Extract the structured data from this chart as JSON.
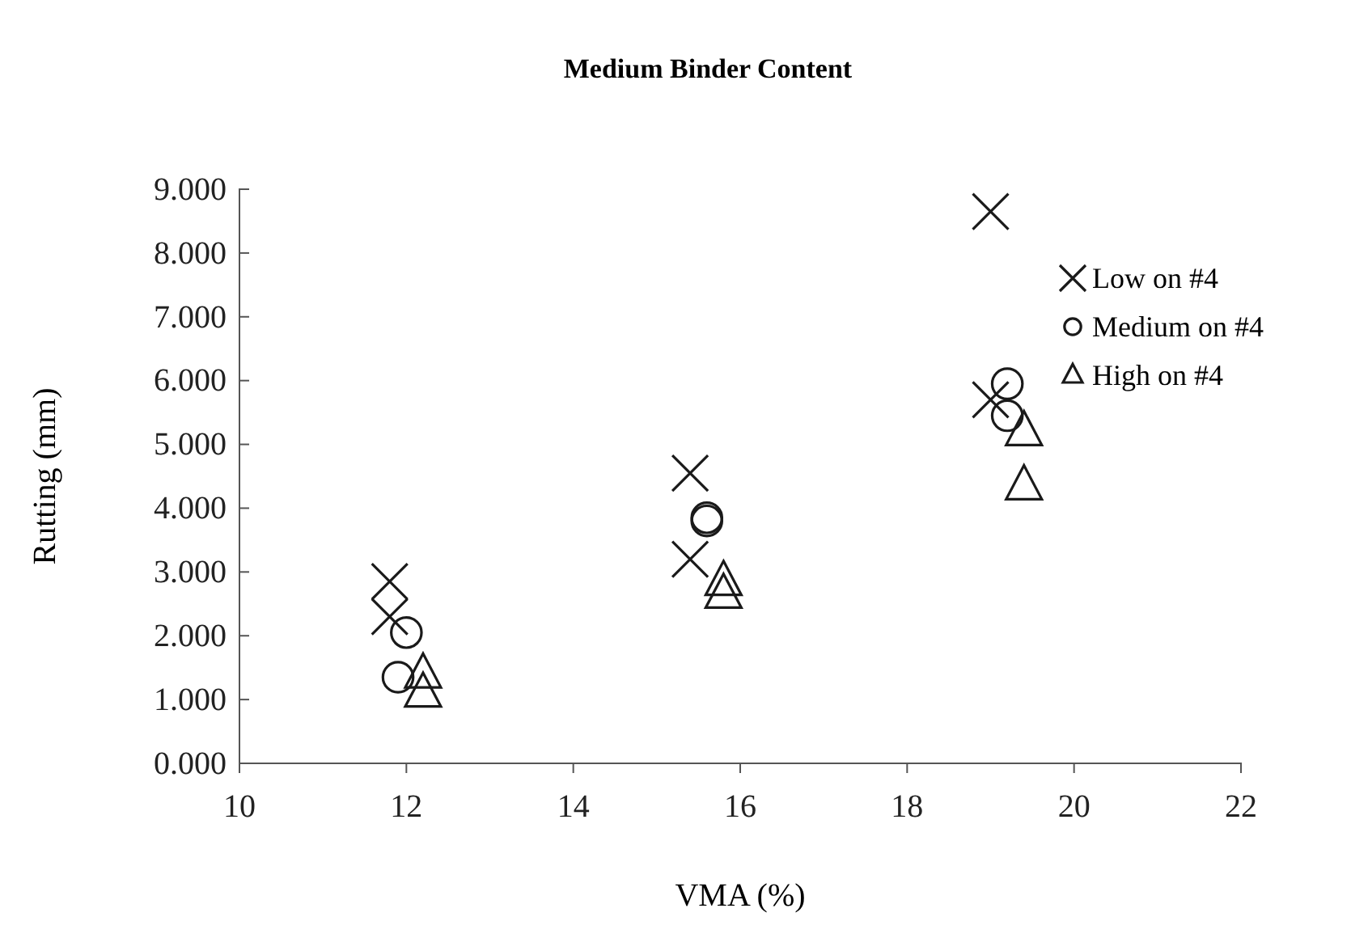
{
  "chart_data": {
    "type": "scatter",
    "title": "Medium Binder Content",
    "xlabel": "VMA (%)",
    "ylabel": "Rutting (mm)",
    "xlim": [
      10,
      22
    ],
    "xticks": [
      10,
      12,
      14,
      16,
      18,
      20,
      22
    ],
    "ylim": [
      0,
      9
    ],
    "yticks": [
      {
        "value": 0,
        "label": "0.000"
      },
      {
        "value": 1,
        "label": "1.000"
      },
      {
        "value": 2,
        "label": "2.000"
      },
      {
        "value": 3,
        "label": "3.000"
      },
      {
        "value": 4,
        "label": "4.000"
      },
      {
        "value": 5,
        "label": "5.000"
      },
      {
        "value": 6,
        "label": "6.000"
      },
      {
        "value": 7,
        "label": "7.000"
      },
      {
        "value": 8,
        "label": "8.000"
      },
      {
        "value": 9,
        "label": "9.000"
      }
    ],
    "grid": false,
    "legend": "right",
    "series": [
      {
        "name": "Low on #4",
        "color": "#1a1a1a",
        "marker": "cross",
        "x": [
          11.8,
          11.8,
          15.4,
          15.4,
          19.0,
          19.0
        ],
        "values": [
          2.85,
          2.3,
          4.55,
          3.2,
          8.65,
          5.7
        ]
      },
      {
        "name": "Medium on #4",
        "color": "#1a1a1a",
        "marker": "circle",
        "x": [
          12.0,
          11.9,
          15.6,
          15.6,
          19.2,
          19.2
        ],
        "values": [
          2.05,
          1.35,
          3.85,
          3.8,
          5.95,
          5.45
        ]
      },
      {
        "name": "High on #4",
        "color": "#1a1a1a",
        "marker": "triangle",
        "x": [
          12.2,
          12.2,
          15.8,
          15.8,
          19.4,
          19.4
        ],
        "values": [
          1.4,
          1.1,
          2.85,
          2.65,
          5.2,
          4.35
        ]
      }
    ]
  }
}
